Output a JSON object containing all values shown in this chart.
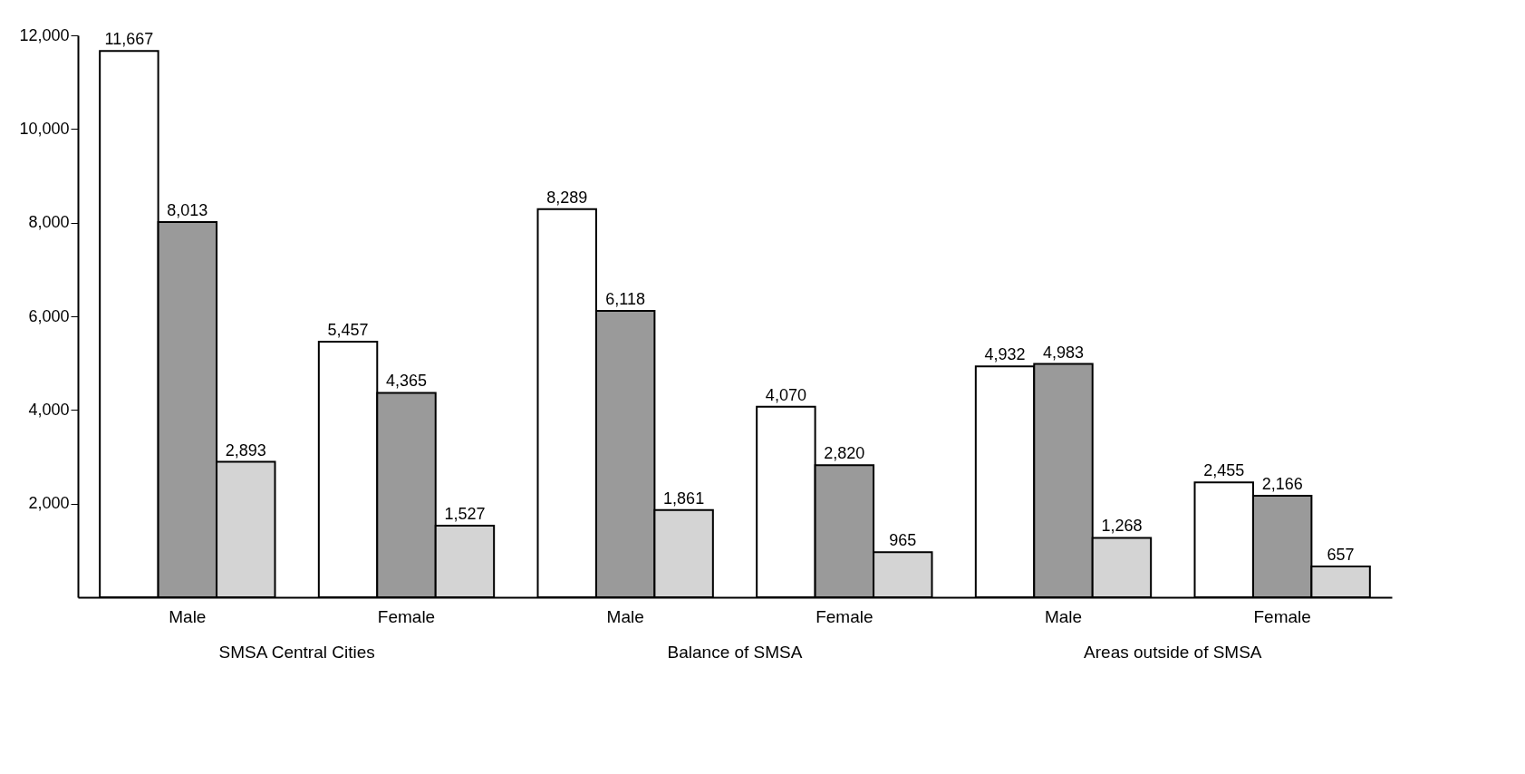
{
  "chart_data": {
    "type": "bar",
    "categories": [
      "Male",
      "Female",
      "Male",
      "Female",
      "Male",
      "Female"
    ],
    "series": [
      {
        "color": "#ffffff",
        "values": [
          11667,
          5457,
          8289,
          4070,
          4932,
          2455
        ],
        "value_labels": [
          "11,667",
          "5,457",
          "8,289",
          "4,070",
          "4,932",
          "2,455"
        ]
      },
      {
        "color": "#9a9a9a",
        "values": [
          8013,
          4365,
          6118,
          2820,
          4983,
          2166
        ],
        "value_labels": [
          "8,013",
          "4,365",
          "6,118",
          "2,820",
          "4,983",
          "2,166"
        ]
      },
      {
        "color": "#d4d4d4",
        "values": [
          2893,
          1527,
          1861,
          965,
          1268,
          657
        ],
        "value_labels": [
          "2,893",
          "1,527",
          "1,861",
          "965",
          "1,268",
          "657"
        ]
      }
    ],
    "ylim": [
      0,
      12000
    ],
    "yticks": [
      {
        "value": 2000,
        "label": "2,000"
      },
      {
        "value": 4000,
        "label": "4,000"
      },
      {
        "value": 6000,
        "label": "6,000"
      },
      {
        "value": 8000,
        "label": "8,000"
      },
      {
        "value": 10000,
        "label": "10,000"
      },
      {
        "value": 12000,
        "label": "12,000"
      }
    ],
    "annotations": [
      "SMSA Central Cities",
      "Balance of SMSA",
      "Areas outside of SMSA"
    ],
    "grid": false,
    "legend": false
  }
}
